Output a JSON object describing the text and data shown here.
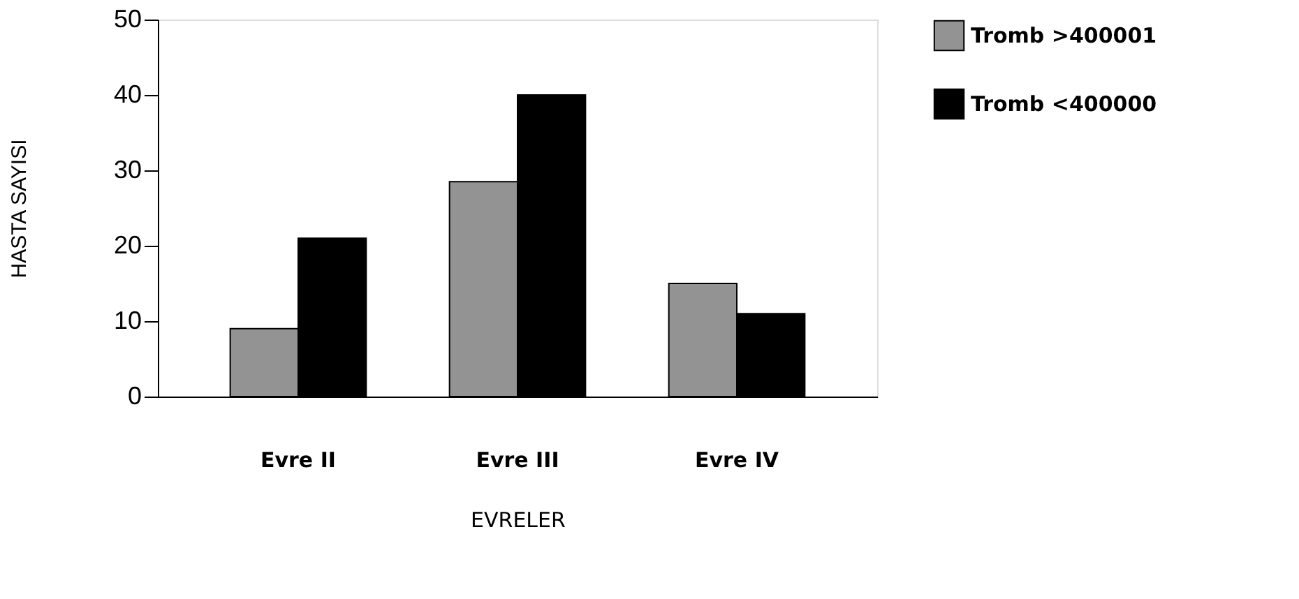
{
  "chart_data": {
    "type": "bar",
    "xlabel": "EVRELER",
    "ylabel": "HASTA SAYISI",
    "categories": [
      "Evre II",
      "Evre III",
      "Evre IV"
    ],
    "series": [
      {
        "name": "Tromb >400001",
        "color": "#939393",
        "values": [
          9,
          28.5,
          15
        ]
      },
      {
        "name": "Tromb <400000",
        "color": "#000000",
        "values": [
          21,
          40,
          11
        ]
      }
    ],
    "ylim": [
      0,
      50
    ],
    "yticks": [
      0,
      10,
      20,
      30,
      40,
      50
    ],
    "grid": false,
    "legend": "right"
  }
}
